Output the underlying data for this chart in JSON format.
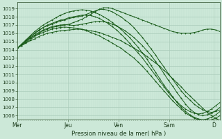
{
  "bg_color": "#cce8d8",
  "plot_bg_color": "#cce8d8",
  "grid_major_color": "#aaccbb",
  "grid_minor_color": "#bbddcc",
  "line_color": "#1a5c1a",
  "ylabel_text": "Pression niveau de la mer( hPa )",
  "yticks": [
    1006,
    1007,
    1008,
    1009,
    1010,
    1011,
    1012,
    1013,
    1014,
    1015,
    1016,
    1017,
    1018,
    1019
  ],
  "ylim": [
    1005.5,
    1019.8
  ],
  "xtick_labels": [
    "Mer",
    "Jeu",
    "Ven",
    "Sam",
    "D"
  ],
  "xtick_positions": [
    0,
    24,
    48,
    72,
    93
  ],
  "xlim": [
    0,
    96
  ],
  "num_points": 97,
  "lines": [
    [
      1014.2,
      1014.5,
      1014.8,
      1015.1,
      1015.3,
      1015.6,
      1015.8,
      1016.0,
      1016.1,
      1016.2,
      1016.3,
      1016.35,
      1016.4,
      1016.45,
      1016.5,
      1016.45,
      1016.4,
      1016.3,
      1016.2,
      1016.1,
      1015.9,
      1015.7,
      1015.5,
      1015.3,
      1015.1,
      1014.8,
      1014.5,
      1014.2,
      1013.9,
      1013.6,
      1013.2,
      1012.8,
      1012.4,
      1012.0,
      1011.5,
      1011.0,
      1010.5,
      1010.0,
      1009.5,
      1008.9,
      1008.4,
      1007.9,
      1007.4,
      1006.9,
      1006.4,
      1006.0,
      1005.7,
      1005.4
    ],
    [
      1014.2,
      1014.5,
      1014.9,
      1015.2,
      1015.6,
      1015.9,
      1016.1,
      1016.3,
      1016.5,
      1016.6,
      1016.7,
      1016.75,
      1016.7,
      1016.65,
      1016.6,
      1016.5,
      1016.3,
      1016.1,
      1015.9,
      1015.7,
      1015.4,
      1015.1,
      1014.8,
      1014.5,
      1014.2,
      1013.8,
      1013.4,
      1013.0,
      1012.5,
      1012.0,
      1011.4,
      1010.8,
      1010.2,
      1009.6,
      1009.0,
      1008.4,
      1007.8,
      1007.3,
      1006.8,
      1006.3,
      1006.0,
      1005.7,
      1005.5,
      1005.4,
      1005.4,
      1005.5,
      1005.7,
      1006.0
    ],
    [
      1014.2,
      1014.6,
      1015.0,
      1015.4,
      1015.8,
      1016.1,
      1016.4,
      1016.6,
      1016.8,
      1016.9,
      1017.0,
      1017.05,
      1017.0,
      1016.95,
      1017.0,
      1017.1,
      1017.2,
      1017.3,
      1017.4,
      1017.45,
      1017.4,
      1017.3,
      1017.1,
      1016.9,
      1016.6,
      1016.3,
      1015.9,
      1015.5,
      1015.0,
      1014.5,
      1013.9,
      1013.3,
      1012.6,
      1011.9,
      1011.1,
      1010.3,
      1009.6,
      1008.8,
      1008.1,
      1007.4,
      1006.8,
      1006.4,
      1006.1,
      1006.0,
      1006.1,
      1006.3,
      1006.6,
      1007.0
    ],
    [
      1014.2,
      1014.6,
      1015.1,
      1015.5,
      1016.0,
      1016.3,
      1016.7,
      1017.0,
      1017.2,
      1017.4,
      1017.6,
      1017.7,
      1017.9,
      1018.0,
      1018.1,
      1018.2,
      1018.2,
      1018.15,
      1018.0,
      1017.8,
      1017.5,
      1017.2,
      1016.8,
      1016.4,
      1015.9,
      1015.4,
      1014.8,
      1014.2,
      1013.6,
      1013.0,
      1012.3,
      1011.6,
      1010.9,
      1010.2,
      1009.5,
      1008.8,
      1008.2,
      1007.7,
      1007.2,
      1006.8,
      1006.5,
      1006.3,
      1006.2,
      1006.3,
      1006.5,
      1006.8,
      1007.2,
      1007.6
    ],
    [
      1014.2,
      1014.7,
      1015.2,
      1015.7,
      1016.2,
      1016.6,
      1017.0,
      1017.3,
      1017.6,
      1017.9,
      1018.2,
      1018.4,
      1018.6,
      1018.7,
      1018.8,
      1018.85,
      1018.8,
      1018.7,
      1018.5,
      1018.3,
      1018.0,
      1017.7,
      1017.3,
      1016.9,
      1016.5,
      1016.0,
      1015.5,
      1014.9,
      1014.3,
      1013.6,
      1012.9,
      1012.1,
      1011.3,
      1010.5,
      1009.7,
      1009.0,
      1008.3,
      1007.6,
      1007.0,
      1006.5,
      1006.1,
      1005.8,
      1005.6,
      1005.5,
      1005.6,
      1005.8,
      1006.1,
      1006.5
    ],
    [
      1014.2,
      1014.6,
      1015.1,
      1015.6,
      1016.0,
      1016.4,
      1016.7,
      1016.9,
      1017.1,
      1017.3,
      1017.5,
      1017.6,
      1017.8,
      1017.9,
      1018.0,
      1018.1,
      1018.3,
      1018.5,
      1018.7,
      1018.9,
      1018.9,
      1018.8,
      1018.6,
      1018.3,
      1018.0,
      1017.6,
      1017.2,
      1016.7,
      1016.1,
      1015.5,
      1014.8,
      1014.1,
      1013.4,
      1012.6,
      1011.9,
      1011.1,
      1010.4,
      1009.7,
      1009.0,
      1008.4,
      1007.9,
      1007.4,
      1007.0,
      1006.7,
      1006.5,
      1006.4,
      1006.5,
      1006.7
    ],
    [
      1014.2,
      1014.6,
      1015.0,
      1015.4,
      1015.7,
      1016.0,
      1016.3,
      1016.5,
      1016.7,
      1016.8,
      1016.9,
      1017.0,
      1017.1,
      1017.3,
      1017.5,
      1017.7,
      1018.0,
      1018.3,
      1018.6,
      1018.9,
      1019.1,
      1019.1,
      1019.0,
      1018.8,
      1018.6,
      1018.4,
      1018.2,
      1018.0,
      1017.8,
      1017.6,
      1017.4,
      1017.2,
      1017.0,
      1016.8,
      1016.6,
      1016.4,
      1016.2,
      1016.1,
      1016.0,
      1016.0,
      1016.0,
      1016.1,
      1016.2,
      1016.4,
      1016.5,
      1016.5,
      1016.4,
      1016.2
    ]
  ]
}
